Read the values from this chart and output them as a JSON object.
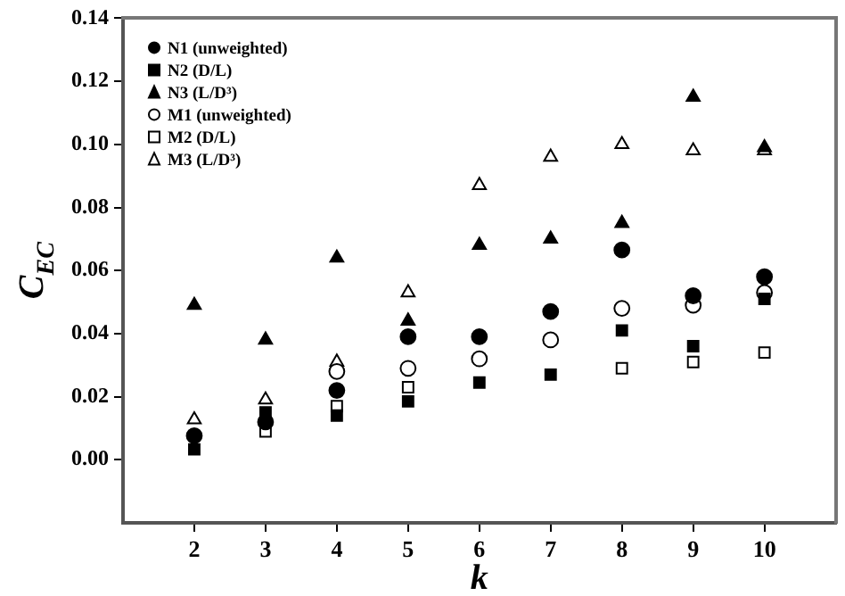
{
  "chart_data": {
    "type": "scatter",
    "xlabel": "k",
    "ylabel": "C$_{EC}$",
    "x": [
      2,
      3,
      4,
      5,
      6,
      7,
      8,
      9,
      10
    ],
    "xlim": [
      1,
      11
    ],
    "xticks": [
      2,
      3,
      4,
      5,
      6,
      7,
      8,
      9,
      10
    ],
    "ylim": [
      -0.02,
      0.14
    ],
    "yticks": [
      {
        "value": 0,
        "label": "0.00"
      },
      0.02,
      0.04,
      0.06,
      0.08,
      {
        "value": 0.1,
        "label": "0.10"
      },
      0.12,
      0.14
    ],
    "grid": false,
    "legend": "top left",
    "series": [
      {
        "name": "N1 (unweighted)",
        "color": "#000000",
        "marker": "circle",
        "values": [
          0.0076,
          0.012,
          0.022,
          0.039,
          0.039,
          0.047,
          0.0665,
          0.052,
          0.058
        ]
      },
      {
        "name": "N2 (D/L)",
        "color": "#000000",
        "marker": "square",
        "values": [
          0.0033,
          0.015,
          0.014,
          0.0185,
          0.0245,
          0.027,
          0.041,
          0.036,
          0.051
        ]
      },
      {
        "name": "N3 (L/D³)",
        "color": "#000000",
        "marker": "triangle",
        "values": [
          0.049,
          0.038,
          0.064,
          0.044,
          0.068,
          0.07,
          0.075,
          0.115,
          0.099
        ]
      },
      {
        "name": "M1 (unweighted)",
        "color": "#ffffff",
        "marker": "circle",
        "values": [
          null,
          null,
          0.028,
          0.029,
          0.032,
          0.038,
          0.048,
          0.049,
          0.053
        ]
      },
      {
        "name": "M2 (D/L)",
        "color": "#ffffff",
        "marker": "square",
        "values": [
          null,
          0.009,
          0.017,
          0.023,
          null,
          null,
          0.029,
          0.031,
          0.034
        ]
      },
      {
        "name": "M3 (L/D³)",
        "color": "#ffffff",
        "marker": "triangle",
        "values": [
          0.0127,
          0.019,
          0.031,
          0.053,
          0.087,
          0.096,
          0.1,
          0.098,
          0.098
        ]
      }
    ]
  }
}
